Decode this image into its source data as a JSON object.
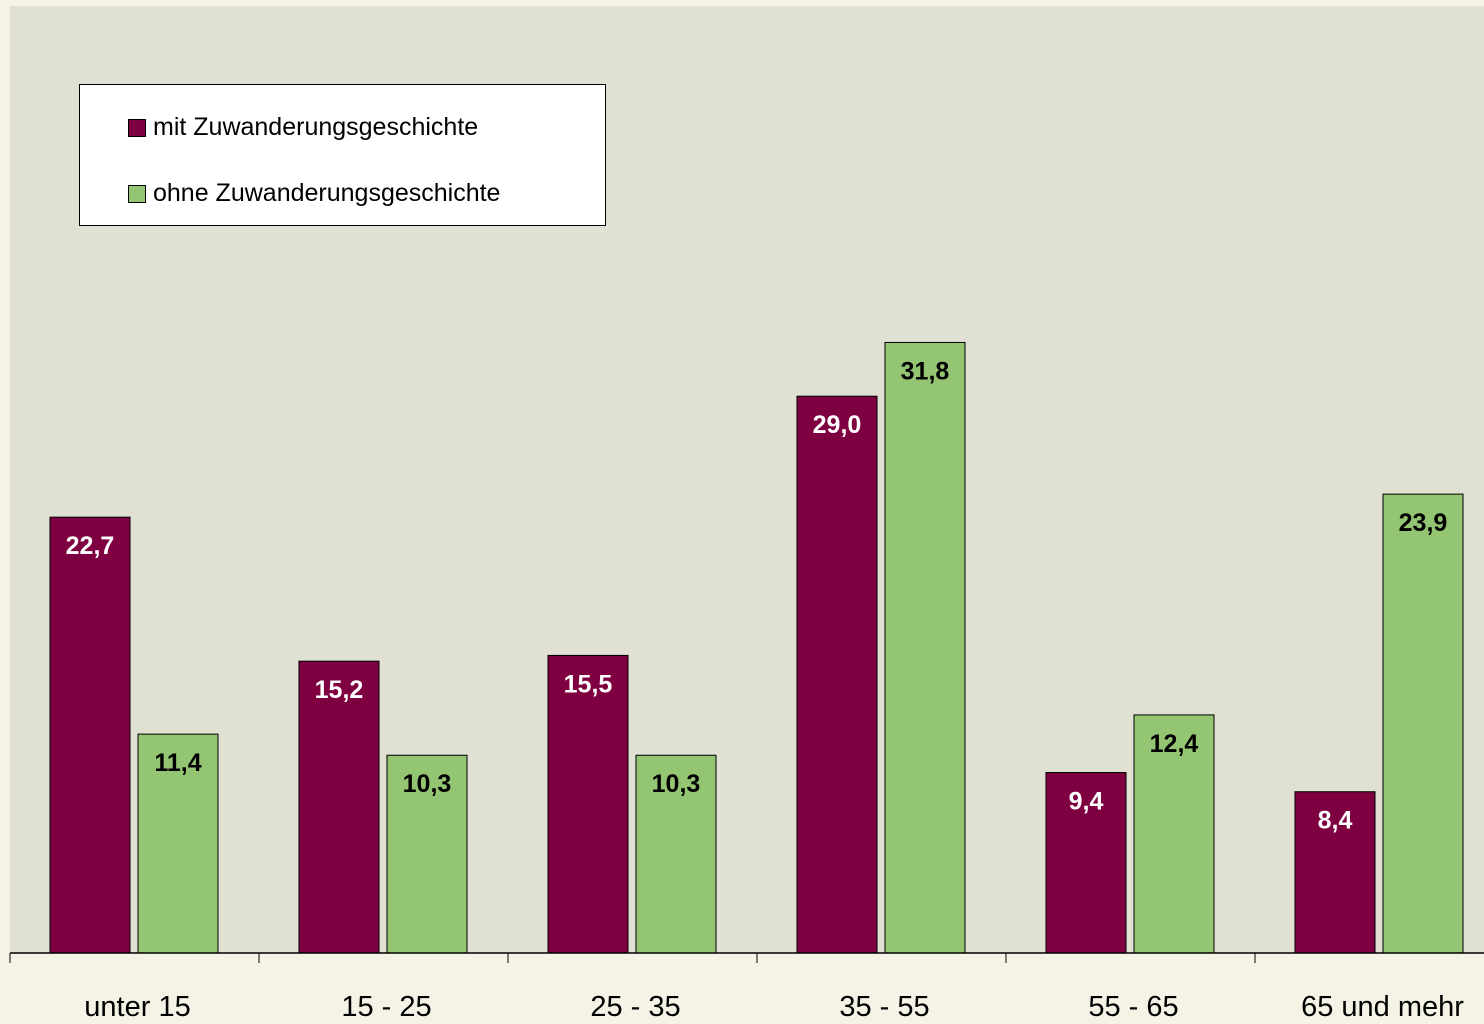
{
  "chart_data": {
    "type": "bar",
    "categories": [
      "unter 15",
      "15 - 25",
      "25 - 35",
      "35 - 55",
      "55 - 65",
      "65 und mehr"
    ],
    "series": [
      {
        "name": "mit Zuwanderungsgeschichte",
        "color": "#7f0040",
        "values": [
          22.7,
          15.2,
          15.5,
          29.0,
          9.4,
          8.4
        ],
        "labels": [
          "22,7",
          "15,2",
          "15,5",
          "29,0",
          "9,4",
          "8,4"
        ]
      },
      {
        "name": "ohne Zuwanderungsgeschichte",
        "color": "#93c572",
        "values": [
          11.4,
          10.3,
          10.3,
          31.8,
          12.4,
          23.9
        ],
        "labels": [
          "11,4",
          "10,3",
          "10,3",
          "31,8",
          "12,4",
          "23,9"
        ]
      }
    ],
    "ylim": [
      0,
      35
    ],
    "grid": false,
    "legend_placement": "top-left",
    "plot_background": "#e1e1d3",
    "page_background": "#f4f3e6"
  }
}
